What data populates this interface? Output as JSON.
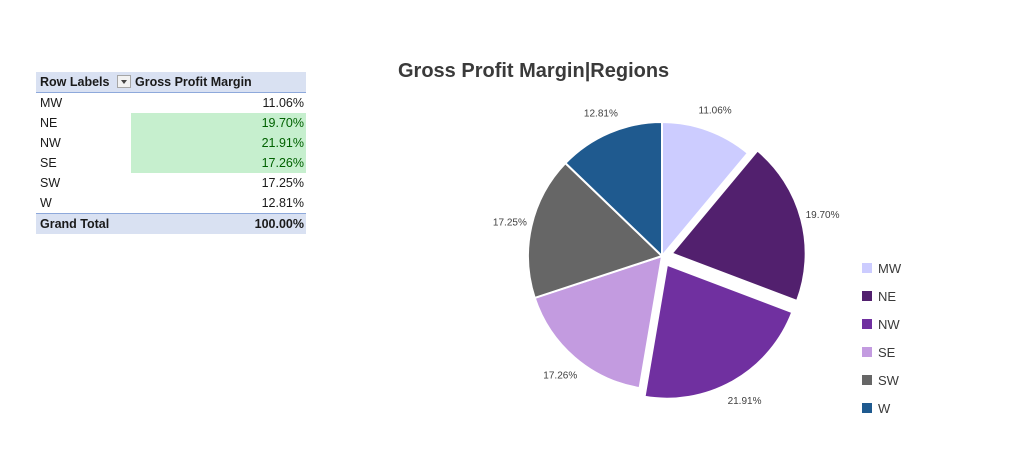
{
  "pivot": {
    "header": {
      "row_labels": "Row Labels",
      "value": "Gross Profit Margin"
    },
    "rows": [
      {
        "label": "MW",
        "value": "11.06%",
        "highlight": false
      },
      {
        "label": "NE",
        "value": "19.70%",
        "highlight": true
      },
      {
        "label": "NW",
        "value": "21.91%",
        "highlight": true
      },
      {
        "label": "SE",
        "value": "17.26%",
        "highlight": true
      },
      {
        "label": "SW",
        "value": "17.25%",
        "highlight": false
      },
      {
        "label": "W",
        "value": "12.81%",
        "highlight": false
      }
    ],
    "total": {
      "label": "Grand Total",
      "value": "100.00%"
    }
  },
  "chart_data": {
    "type": "pie",
    "title": "Gross Profit Margin|Regions",
    "categories": [
      "MW",
      "NE",
      "NW",
      "SE",
      "SW",
      "W"
    ],
    "values": [
      11.06,
      19.7,
      21.91,
      17.26,
      17.25,
      12.81
    ],
    "labels": [
      "11.06%",
      "19.70%",
      "21.91%",
      "17.26%",
      "17.25%",
      "12.81%"
    ],
    "colors": [
      "#ccccff",
      "#52206e",
      "#7030a0",
      "#c39be0",
      "#666666",
      "#1f5a8f"
    ],
    "exploded": [
      "NE",
      "NW"
    ],
    "legend": "right"
  }
}
